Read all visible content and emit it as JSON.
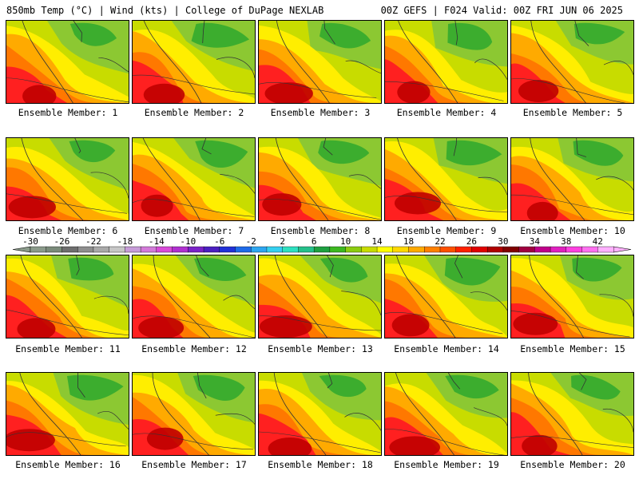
{
  "header": {
    "left_title": "850mb Temp (°C) | Wind (kts) | College of DuPage NEXLAB",
    "right_title": "00Z GEFS | F024 Valid: 00Z FRI JUN 06 2025"
  },
  "member_label_prefix": "Ensemble Member: ",
  "members": [
    1,
    2,
    3,
    4,
    5,
    6,
    7,
    8,
    9,
    10,
    11,
    12,
    13,
    14,
    15,
    16,
    17,
    18,
    19,
    20
  ],
  "member_labels": [
    "Ensemble Member: 1",
    "Ensemble Member: 2",
    "Ensemble Member: 3",
    "Ensemble Member: 4",
    "Ensemble Member: 5",
    "Ensemble Member: 6",
    "Ensemble Member: 7",
    "Ensemble Member: 8",
    "Ensemble Member: 9",
    "Ensemble Member: 10",
    "Ensemble Member: 11",
    "Ensemble Member: 12",
    "Ensemble Member: 13",
    "Ensemble Member: 14",
    "Ensemble Member: 15",
    "Ensemble Member: 16",
    "Ensemble Member: 17",
    "Ensemble Member: 18",
    "Ensemble Member: 19",
    "Ensemble Member: 20"
  ],
  "colorbar": {
    "tick_labels": [
      "-30",
      "-26",
      "-22",
      "-18",
      "-14",
      "-10",
      "-6",
      "-2",
      "2",
      "6",
      "10",
      "14",
      "18",
      "22",
      "26",
      "30",
      "34",
      "38",
      "42"
    ],
    "colors": [
      "#8a9a8a",
      "#7a8a7a",
      "#6e6e6e",
      "#8e8e8e",
      "#a9a9a9",
      "#c7c7c7",
      "#c79cd8",
      "#d37ad9",
      "#d94ad9",
      "#b02fd0",
      "#7a22c8",
      "#4b1fc0",
      "#2130d8",
      "#1e6ae8",
      "#2ea6f0",
      "#35d0f0",
      "#2ee0c0",
      "#25c08a",
      "#1ea040",
      "#3cb820",
      "#8ccc10",
      "#c8dc00",
      "#ffff00",
      "#ffd800",
      "#ffaa00",
      "#ff8000",
      "#ff5000",
      "#ff2000",
      "#e00000",
      "#b00000",
      "#800000",
      "#a00040",
      "#c0008a",
      "#e020c0",
      "#ff40e0",
      "#ff70f0",
      "#ffb0ff"
    ]
  },
  "map_colors": {
    "green": "#2ea82e",
    "light_green": "#8cc832",
    "yellow_green": "#c8dc00",
    "yellow": "#ffee00",
    "orange": "#ffaa00",
    "dark_orange": "#ff7800",
    "red": "#ff2020",
    "dark_red": "#c00000"
  }
}
